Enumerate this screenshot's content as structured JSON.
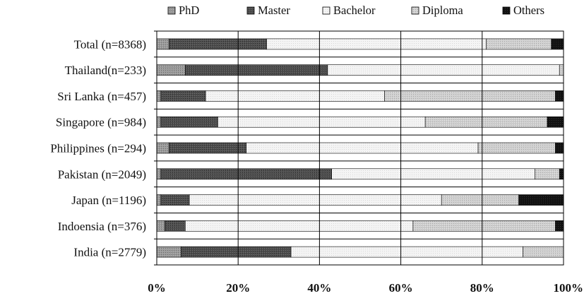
{
  "chart_data": {
    "type": "bar",
    "orientation": "horizontal",
    "stacked": true,
    "percent": true,
    "categories": [
      "Total (n=8368)",
      "Thailand(n=233)",
      "Sri Lanka (n=457)",
      "Singapore (n=984)",
      "Philippines (n=294)",
      "Pakistan (n=2049)",
      "Japan (n=1196)",
      "Indoensia (n=376)",
      "India (n=2779)"
    ],
    "series": [
      {
        "name": "PhD",
        "values": [
          3,
          7,
          1,
          1,
          3,
          1,
          1,
          2,
          6
        ]
      },
      {
        "name": "Master",
        "values": [
          24,
          35,
          11,
          14,
          19,
          42,
          7,
          5,
          27
        ]
      },
      {
        "name": "Bachelor",
        "values": [
          54,
          57,
          44,
          51,
          57,
          50,
          62,
          56,
          57
        ]
      },
      {
        "name": "Diploma",
        "values": [
          16,
          1,
          42,
          30,
          19,
          6,
          19,
          35,
          10
        ]
      },
      {
        "name": "Others",
        "values": [
          3,
          0,
          2,
          4,
          2,
          1,
          11,
          2,
          0
        ]
      }
    ],
    "x_ticks": [
      "0%",
      "20%",
      "40%",
      "60%",
      "80%",
      "100%"
    ],
    "xlim": [
      0,
      100
    ],
    "grid": "vertical",
    "legend": "top",
    "colors": {
      "PhD": "#8f8f8f",
      "Master": "#4a4a4a",
      "Bachelor": "#f1f1f1",
      "Diploma": "#c9c9c9",
      "Others": "#0d0d0d"
    }
  }
}
